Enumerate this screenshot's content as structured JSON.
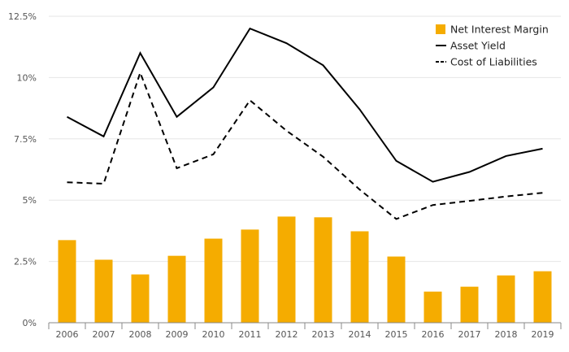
{
  "chart_data": {
    "type": "bar+line",
    "title": "",
    "xlabel": "",
    "ylabel": "",
    "categories": [
      "2006",
      "2007",
      "2008",
      "2009",
      "2010",
      "2011",
      "2012",
      "2013",
      "2014",
      "2015",
      "2016",
      "2017",
      "2018",
      "2019"
    ],
    "ylim": [
      0,
      12.5
    ],
    "yticks": [
      0,
      2.5,
      5,
      7.5,
      10,
      12.5
    ],
    "ytick_labels": [
      "0%",
      "2.5%",
      "5%",
      "7.5%",
      "10%",
      "12.5%"
    ],
    "grid": true,
    "legend_position": "top-right",
    "series": [
      {
        "name": "Net Interest Margin",
        "kind": "bar",
        "color": "#F5AC00",
        "values": [
          3.37,
          2.57,
          1.97,
          2.73,
          3.43,
          3.8,
          4.33,
          4.3,
          3.73,
          2.7,
          1.27,
          1.47,
          1.93,
          2.1
        ]
      },
      {
        "name": "Asset Yield",
        "kind": "line",
        "style": "solid",
        "color": "#000000",
        "values": [
          8.4,
          7.6,
          11.0,
          8.4,
          9.6,
          12.0,
          11.4,
          10.5,
          8.7,
          6.6,
          5.75,
          6.15,
          6.8,
          7.1
        ]
      },
      {
        "name": "Cost of Liabilities",
        "kind": "line",
        "style": "dashed",
        "color": "#000000",
        "values": [
          5.73,
          5.67,
          10.2,
          6.3,
          6.87,
          9.07,
          7.83,
          6.77,
          5.43,
          4.23,
          4.8,
          4.97,
          5.15,
          5.3
        ]
      }
    ]
  }
}
